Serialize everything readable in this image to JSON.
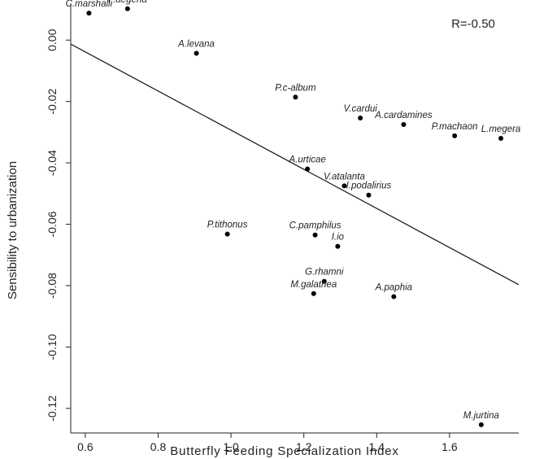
{
  "chart_data": {
    "type": "scatter",
    "title": "",
    "xlabel": "Butterfly  Feeding Specialization Index",
    "ylabel": "Sensibility to urbanization",
    "annotation": "R=-0.50",
    "xlim": [
      0.56,
      1.79
    ],
    "ylim": [
      -0.128,
      0.012
    ],
    "xticks": [
      0.6,
      0.8,
      1.0,
      1.2,
      1.4,
      1.6
    ],
    "xtick_labels": [
      "0.6",
      "0.8",
      "1.0",
      "1.2",
      "1.4",
      "1.6"
    ],
    "yticks": [
      0.0,
      -0.02,
      -0.04,
      -0.06,
      -0.08,
      -0.1,
      -0.12
    ],
    "ytick_labels": [
      "0.00",
      "-0.02",
      "-0.04",
      "-0.06",
      "-0.08",
      "-0.10",
      "-0.12"
    ],
    "grid": false,
    "legend": "none",
    "regression_line": {
      "x": [
        0.56,
        1.79
      ],
      "y": [
        -0.0013,
        -0.0797
      ]
    },
    "points": [
      {
        "label": "C.marshalli",
        "x": 0.61,
        "y": 0.0088
      },
      {
        "label": "P.aegeria",
        "x": 0.716,
        "y": 0.0102
      },
      {
        "label": "A.levana",
        "x": 0.905,
        "y": -0.0043
      },
      {
        "label": "P.c-album",
        "x": 1.177,
        "y": -0.0186
      },
      {
        "label": "V.cardui",
        "x": 1.355,
        "y": -0.0254
      },
      {
        "label": "A.cardamines",
        "x": 1.474,
        "y": -0.0275
      },
      {
        "label": "P.machaon",
        "x": 1.614,
        "y": -0.0312
      },
      {
        "label": "L.megera",
        "x": 1.741,
        "y": -0.032
      },
      {
        "label": "A.urticae",
        "x": 1.21,
        "y": -0.042
      },
      {
        "label": "V.atalanta",
        "x": 1.311,
        "y": -0.0475
      },
      {
        "label": "I.podalirius",
        "x": 1.378,
        "y": -0.0505
      },
      {
        "label": "P.tithonus",
        "x": 0.99,
        "y": -0.0632
      },
      {
        "label": "C.pamphilus",
        "x": 1.231,
        "y": -0.0635
      },
      {
        "label": "I.io",
        "x": 1.293,
        "y": -0.0672
      },
      {
        "label": "G.rhamni",
        "x": 1.256,
        "y": -0.0786
      },
      {
        "label": "M.galathea",
        "x": 1.227,
        "y": -0.0826
      },
      {
        "label": "A.paphia",
        "x": 1.447,
        "y": -0.0836
      },
      {
        "label": "M.jurtina",
        "x": 1.687,
        "y": -0.1253
      }
    ]
  }
}
